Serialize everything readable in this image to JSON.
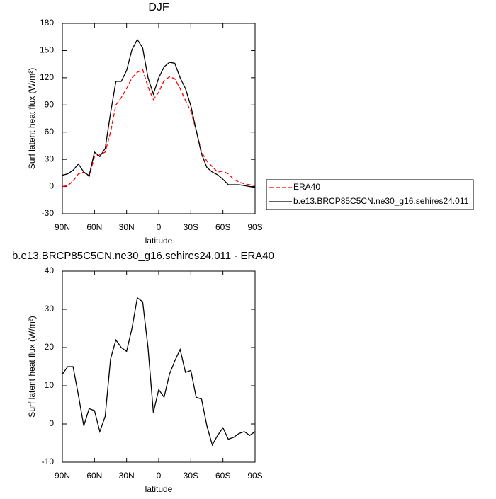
{
  "chart_data": [
    {
      "type": "line",
      "title": "DJF",
      "xlabel": "latitude",
      "ylabel": "Surf latent heat flux (W/m²)",
      "x": [
        90,
        85,
        80,
        75,
        70,
        65,
        60,
        55,
        50,
        45,
        40,
        35,
        30,
        25,
        20,
        15,
        10,
        5,
        0,
        -5,
        -10,
        -15,
        -20,
        -25,
        -30,
        -35,
        -40,
        -45,
        -50,
        -55,
        -60,
        -65,
        -70,
        -75,
        -80,
        -85,
        -90
      ],
      "xlim": [
        90,
        -90
      ],
      "xticks": [
        {
          "value": 90,
          "label": "90N"
        },
        {
          "value": 60,
          "label": "60N"
        },
        {
          "value": 30,
          "label": "30N"
        },
        0,
        {
          "value": -30,
          "label": "30S"
        },
        {
          "value": -60,
          "label": "60S"
        },
        {
          "value": -90,
          "label": "90S"
        }
      ],
      "ylim": [
        -30,
        180
      ],
      "yticks": [
        -30,
        0,
        30,
        60,
        90,
        120,
        150,
        180
      ],
      "legend": "right",
      "series": [
        {
          "name": "ERA40",
          "color": "#ff0000",
          "dash": true,
          "values": [
            0,
            1,
            6,
            14,
            16,
            11,
            33,
            35,
            38,
            60,
            90,
            98,
            108,
            120,
            126,
            129,
            110,
            96,
            104,
            117,
            121,
            119,
            108,
            95,
            83,
            62,
            38,
            28,
            22,
            16,
            17,
            14,
            8,
            5,
            3,
            2,
            1
          ]
        },
        {
          "name": "b.e13.BRCP85C5CN.ne30_g16.sehires24.011",
          "color": "#000000",
          "dash": false,
          "values": [
            12.5,
            14,
            18,
            25,
            16,
            12,
            38,
            33,
            42,
            81,
            116,
            116,
            128,
            151,
            162,
            153,
            120,
            102,
            120,
            132,
            137,
            136,
            120,
            108,
            89,
            62,
            36,
            21,
            16,
            13,
            8,
            2,
            2,
            2,
            1,
            0,
            -1
          ]
        }
      ]
    },
    {
      "type": "line",
      "title": "b.e13.BRCP85C5CN.ne30_g16.sehires24.011 - ERA40",
      "xlabel": "latitude",
      "ylabel": "Surf latent heat flux (W/m²)",
      "x": [
        90,
        85,
        80,
        75,
        70,
        65,
        60,
        55,
        50,
        45,
        40,
        35,
        30,
        25,
        20,
        15,
        10,
        5,
        0,
        -5,
        -10,
        -15,
        -20,
        -25,
        -30,
        -35,
        -40,
        -45,
        -50,
        -55,
        -60,
        -65,
        -70,
        -75,
        -80,
        -85,
        -90
      ],
      "xlim": [
        90,
        -90
      ],
      "xticks": [
        {
          "value": 90,
          "label": "90N"
        },
        {
          "value": 60,
          "label": "60N"
        },
        {
          "value": 30,
          "label": "30N"
        },
        0,
        {
          "value": -30,
          "label": "30S"
        },
        {
          "value": -60,
          "label": "60S"
        },
        {
          "value": -90,
          "label": "90S"
        }
      ],
      "ylim": [
        -10,
        40
      ],
      "yticks": [
        -10,
        0,
        10,
        20,
        30,
        40
      ],
      "series": [
        {
          "color": "#000000",
          "dash": false,
          "values": [
            13,
            15,
            15,
            7.5,
            -0.5,
            4,
            3.5,
            -2,
            2,
            17,
            22,
            20,
            19,
            25,
            33,
            32,
            20,
            3,
            9,
            7,
            13,
            16.5,
            19.5,
            13.5,
            14,
            7,
            6.5,
            -0.5,
            -5.5,
            -3,
            -1,
            -4,
            -3.5,
            -2.5,
            -2,
            -3,
            -2
          ]
        }
      ]
    }
  ]
}
